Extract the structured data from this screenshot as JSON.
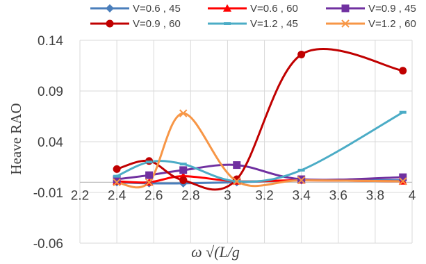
{
  "chart_data": {
    "type": "line",
    "title": "",
    "xlabel": "ω √(L/g",
    "ylabel": "Heave RAO",
    "xlim": [
      2.2,
      4.0
    ],
    "ylim": [
      -0.06,
      0.14
    ],
    "x_ticks": [
      "2.2",
      "2.4",
      "2.6",
      "2.8",
      "3",
      "3.2",
      "3.4",
      "3.6",
      "3.8",
      "4"
    ],
    "y_ticks": [
      "0.14",
      "0.09",
      "0.04",
      "-0.01",
      "-0.06"
    ],
    "grid": true,
    "legend_position": "top",
    "smooth": true,
    "series": [
      {
        "name": "V=0.6 , 45",
        "color": "#4a7ebb",
        "marker": "diamond",
        "x": [
          2.4,
          2.575,
          2.76,
          3.05,
          3.4,
          3.95
        ],
        "y": [
          0.0,
          -0.001,
          -0.001,
          0.0,
          0.002,
          0.002
        ]
      },
      {
        "name": "V=0.6 , 60",
        "color": "#ff0000",
        "marker": "triangle",
        "x": [
          2.4,
          2.575,
          2.76,
          3.05,
          3.4,
          3.95
        ],
        "y": [
          0.001,
          0.0,
          0.006,
          0.001,
          0.002,
          0.001
        ]
      },
      {
        "name": "V=0.9 , 45",
        "color": "#7030a0",
        "marker": "square",
        "x": [
          2.4,
          2.575,
          2.76,
          3.05,
          3.4,
          3.95
        ],
        "y": [
          0.003,
          0.007,
          0.012,
          0.017,
          0.003,
          0.005
        ]
      },
      {
        "name": "V=0.9 , 60",
        "color": "#c00000",
        "marker": "circle",
        "x": [
          2.4,
          2.575,
          2.76,
          3.05,
          3.4,
          3.95
        ],
        "y": [
          0.013,
          0.021,
          0.002,
          0.003,
          0.126,
          0.11
        ]
      },
      {
        "name": "V=1.2 , 45",
        "color": "#4bacc6",
        "marker": "dash",
        "x": [
          2.4,
          2.575,
          2.76,
          3.05,
          3.4,
          3.95
        ],
        "y": [
          0.006,
          0.02,
          0.018,
          0.001,
          0.012,
          0.069
        ]
      },
      {
        "name": "V=1.2 , 60",
        "color": "#f79646",
        "marker": "x",
        "x": [
          2.4,
          2.575,
          2.76,
          3.05,
          3.4,
          3.95
        ],
        "y": [
          0.0,
          0.0,
          0.068,
          0.001,
          0.002,
          0.001
        ]
      }
    ]
  }
}
